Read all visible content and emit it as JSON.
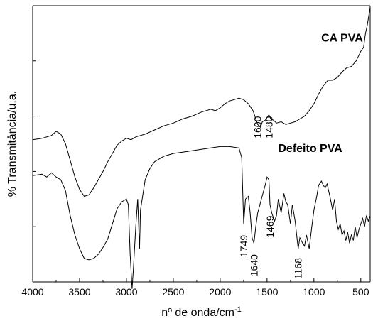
{
  "chart_data": {
    "type": "line",
    "xlabel": "nº de onda/cm",
    "xlabel_superscript": "-1",
    "ylabel": "% Transmitância/u.a.",
    "xlim": [
      4000,
      400
    ],
    "x_reversed": true,
    "xticks": [
      4000,
      3500,
      3000,
      2500,
      2000,
      1500,
      1000,
      500
    ],
    "ylim": [
      0,
      100
    ],
    "y_tick_labels_shown": false,
    "grid": false,
    "series": [
      {
        "name": "CA PVA",
        "points": [
          [
            4000,
            51.5
          ],
          [
            3900,
            52.0
          ],
          [
            3800,
            53.0
          ],
          [
            3750,
            54.5
          ],
          [
            3700,
            53.5
          ],
          [
            3650,
            50.0
          ],
          [
            3600,
            44.0
          ],
          [
            3550,
            38.0
          ],
          [
            3500,
            33.5
          ],
          [
            3450,
            31.0
          ],
          [
            3400,
            31.5
          ],
          [
            3350,
            34.0
          ],
          [
            3300,
            37.0
          ],
          [
            3250,
            40.0
          ],
          [
            3200,
            43.5
          ],
          [
            3150,
            46.5
          ],
          [
            3100,
            49.5
          ],
          [
            3050,
            51.0
          ],
          [
            3000,
            52.0
          ],
          [
            2950,
            51.5
          ],
          [
            2900,
            52.5
          ],
          [
            2850,
            53.0
          ],
          [
            2800,
            53.5
          ],
          [
            2700,
            55.0
          ],
          [
            2600,
            56.5
          ],
          [
            2500,
            57.5
          ],
          [
            2400,
            59.0
          ],
          [
            2300,
            60.0
          ],
          [
            2200,
            61.5
          ],
          [
            2100,
            62.5
          ],
          [
            2050,
            62.0
          ],
          [
            2000,
            63.0
          ],
          [
            1950,
            64.5
          ],
          [
            1900,
            65.5
          ],
          [
            1850,
            66.0
          ],
          [
            1800,
            66.5
          ],
          [
            1750,
            66.0
          ],
          [
            1700,
            64.5
          ],
          [
            1650,
            62.0
          ],
          [
            1600,
            57.0
          ],
          [
            1570,
            56.0
          ],
          [
            1550,
            58.0
          ],
          [
            1520,
            58.5
          ],
          [
            1500,
            59.5
          ],
          [
            1480,
            60.5
          ],
          [
            1460,
            59.0
          ],
          [
            1430,
            58.5
          ],
          [
            1400,
            57.5
          ],
          [
            1350,
            58.0
          ],
          [
            1300,
            57.0
          ],
          [
            1250,
            57.5
          ],
          [
            1200,
            58.0
          ],
          [
            1150,
            59.0
          ],
          [
            1100,
            60.0
          ],
          [
            1050,
            62.0
          ],
          [
            1000,
            64.5
          ],
          [
            950,
            68.0
          ],
          [
            900,
            71.0
          ],
          [
            850,
            73.0
          ],
          [
            800,
            73.0
          ],
          [
            750,
            74.0
          ],
          [
            700,
            76.0
          ],
          [
            650,
            77.5
          ],
          [
            600,
            78.0
          ],
          [
            550,
            80.0
          ],
          [
            500,
            83.5
          ],
          [
            470,
            85.0
          ],
          [
            450,
            90.0
          ],
          [
            430,
            93.0
          ],
          [
            400,
            99.5
          ]
        ]
      },
      {
        "name": "Defeito PVA",
        "points": [
          [
            4000,
            38.5
          ],
          [
            3900,
            39.0
          ],
          [
            3850,
            38.0
          ],
          [
            3800,
            39.5
          ],
          [
            3750,
            38.0
          ],
          [
            3700,
            37.0
          ],
          [
            3650,
            33.0
          ],
          [
            3600,
            24.0
          ],
          [
            3550,
            17.0
          ],
          [
            3500,
            12.0
          ],
          [
            3450,
            8.5
          ],
          [
            3400,
            8.0
          ],
          [
            3350,
            8.5
          ],
          [
            3300,
            10.0
          ],
          [
            3250,
            12.5
          ],
          [
            3200,
            15.5
          ],
          [
            3150,
            21.0
          ],
          [
            3100,
            26.5
          ],
          [
            3050,
            29.0
          ],
          [
            3000,
            30.0
          ],
          [
            2980,
            28.0
          ],
          [
            2960,
            10.0
          ],
          [
            2940,
            -2.5
          ],
          [
            2925,
            5.0
          ],
          [
            2900,
            20.0
          ],
          [
            2880,
            30.0
          ],
          [
            2860,
            12.0
          ],
          [
            2850,
            26.0
          ],
          [
            2800,
            37.0
          ],
          [
            2750,
            41.0
          ],
          [
            2700,
            43.5
          ],
          [
            2600,
            45.5
          ],
          [
            2500,
            46.5
          ],
          [
            2400,
            47.0
          ],
          [
            2300,
            47.5
          ],
          [
            2200,
            48.0
          ],
          [
            2100,
            48.5
          ],
          [
            2000,
            49.0
          ],
          [
            1900,
            49.0
          ],
          [
            1800,
            48.5
          ],
          [
            1770,
            45.0
          ],
          [
            1749,
            21.0
          ],
          [
            1730,
            30.0
          ],
          [
            1700,
            31.0
          ],
          [
            1680,
            25.0
          ],
          [
            1660,
            16.0
          ],
          [
            1640,
            14.0
          ],
          [
            1620,
            20.0
          ],
          [
            1600,
            25.0
          ],
          [
            1560,
            30.0
          ],
          [
            1520,
            35.0
          ],
          [
            1500,
            38.0
          ],
          [
            1480,
            37.0
          ],
          [
            1469,
            28.0
          ],
          [
            1450,
            25.0
          ],
          [
            1420,
            22.0
          ],
          [
            1400,
            24.0
          ],
          [
            1380,
            30.0
          ],
          [
            1350,
            25.0
          ],
          [
            1320,
            32.0
          ],
          [
            1300,
            29.0
          ],
          [
            1280,
            28.0
          ],
          [
            1250,
            21.0
          ],
          [
            1230,
            28.0
          ],
          [
            1200,
            22.0
          ],
          [
            1168,
            12.0
          ],
          [
            1150,
            16.0
          ],
          [
            1120,
            14.0
          ],
          [
            1100,
            13.0
          ],
          [
            1080,
            17.0
          ],
          [
            1050,
            12.0
          ],
          [
            1030,
            18.0
          ],
          [
            1000,
            26.0
          ],
          [
            970,
            31.0
          ],
          [
            950,
            35.0
          ],
          [
            920,
            36.5
          ],
          [
            900,
            35.0
          ],
          [
            880,
            34.0
          ],
          [
            860,
            35.5
          ],
          [
            830,
            31.0
          ],
          [
            800,
            26.0
          ],
          [
            780,
            30.0
          ],
          [
            760,
            22.0
          ],
          [
            740,
            19.0
          ],
          [
            720,
            21.0
          ],
          [
            700,
            17.0
          ],
          [
            680,
            18.5
          ],
          [
            660,
            15.0
          ],
          [
            640,
            18.0
          ],
          [
            620,
            14.0
          ],
          [
            600,
            17.0
          ],
          [
            580,
            15.0
          ],
          [
            560,
            20.0
          ],
          [
            540,
            16.0
          ],
          [
            520,
            19.0
          ],
          [
            500,
            21.0
          ],
          [
            480,
            23.0
          ],
          [
            460,
            20.0
          ],
          [
            440,
            24.0
          ],
          [
            420,
            22.0
          ],
          [
            400,
            24.0
          ]
        ]
      }
    ],
    "series_labels": [
      {
        "series": "CA PVA",
        "text": "CA PVA",
        "x": 700,
        "y": 87
      },
      {
        "series": "Defeito PVA",
        "text": "Defeito PVA",
        "x": 1040,
        "y": 47
      }
    ],
    "annotations": [
      {
        "text": "1600",
        "x": 1600,
        "y": 52
      },
      {
        "text": "1480",
        "x": 1480,
        "y": 52
      },
      {
        "text": "1749",
        "x": 1749,
        "y": 9
      },
      {
        "text": "1640",
        "x": 1640,
        "y": 2
      },
      {
        "text": "1469",
        "x": 1469,
        "y": 16
      },
      {
        "text": "1168",
        "x": 1168,
        "y": 1
      }
    ]
  }
}
